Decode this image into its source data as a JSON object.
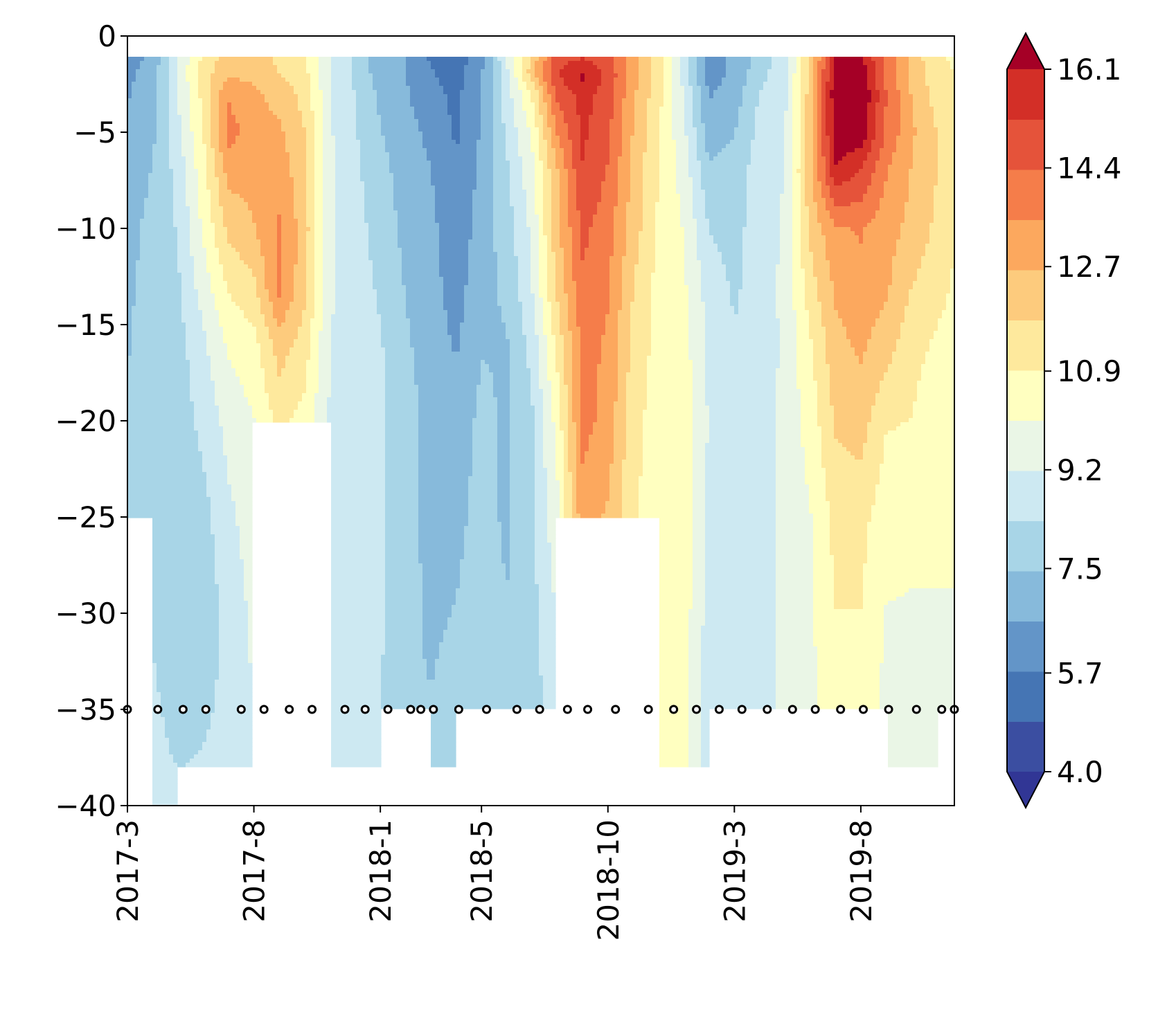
{
  "chart_data": {
    "type": "heatmap",
    "title": "",
    "xlabel": "",
    "ylabel": "",
    "x_ticks": [
      "2017-3",
      "2017-8",
      "2018-1",
      "2018-5",
      "2018-10",
      "2019-3",
      "2019-8"
    ],
    "x_tick_months": [
      0,
      5,
      10,
      14,
      19,
      24,
      29
    ],
    "x_range_months": [
      0,
      32.7
    ],
    "y_ticks": [
      0,
      -5,
      -10,
      -15,
      -20,
      -25,
      -30,
      -35,
      -40
    ],
    "y_tick_labels": [
      "0",
      "−5",
      "−10",
      "−15",
      "−20",
      "−25",
      "−30",
      "−35",
      "−40"
    ],
    "ylim": [
      -40,
      0
    ],
    "colorbar": {
      "min": 4.0,
      "max": 16.1,
      "extend": "both",
      "levels": 14,
      "tick_values": [
        16.1,
        14.4,
        12.7,
        10.9,
        9.2,
        7.5,
        5.7,
        4.0
      ],
      "tick_labels": [
        "16.1",
        "14.4",
        "12.7",
        "10.9",
        "9.2",
        "7.5",
        "5.7",
        "4.0"
      ],
      "colors_low_to_high": [
        "#3b4ea1",
        "#4575b4",
        "#6395c8",
        "#87badb",
        "#a8d5e7",
        "#cde9f2",
        "#eaf6e6",
        "#ffffc0",
        "#fee99d",
        "#fdcb7d",
        "#fca85e",
        "#f57d4a",
        "#e5533a",
        "#d32f27"
      ],
      "under_color": "#313695",
      "over_color": "#a50026"
    },
    "sample_depth": -35,
    "sample_months": [
      0,
      1.2,
      2.2,
      3.1,
      4.5,
      5.4,
      6.4,
      7.3,
      8.6,
      9.4,
      10.3,
      11.2,
      11.6,
      12.1,
      13.1,
      14.2,
      15.4,
      16.3,
      17.4,
      18.2,
      19.3,
      20.6,
      21.6,
      22.5,
      23.4,
      24.3,
      25.3,
      26.3,
      27.2,
      28.2,
      29.1,
      30.1,
      31.2,
      32.2,
      32.7
    ],
    "grid": false,
    "legend": "colorbar-right",
    "depth_levels": [
      -1,
      -2,
      -3,
      -5,
      -7,
      -10,
      -13,
      -16,
      -20,
      -25,
      -30,
      -35,
      -38,
      -40
    ],
    "profiles": [
      {
        "month": 0,
        "values": [
          6.2,
          6.4,
          6.5,
          6.8,
          7.0,
          7.2,
          7.3,
          7.4,
          7.5,
          7.6,
          null,
          null,
          null,
          null
        ]
      },
      {
        "month": 1,
        "values": [
          6.8,
          7.0,
          7.1,
          7.3,
          7.5,
          7.7,
          7.8,
          7.9,
          8.0,
          8.0,
          8.2,
          8.5,
          8.6,
          8.7
        ]
      },
      {
        "month": 2,
        "values": [
          9.4,
          9.3,
          9.2,
          9.0,
          8.6,
          8.4,
          8.2,
          8.0,
          7.8,
          7.6,
          7.6,
          8.0,
          8.3,
          8.4
        ]
      },
      {
        "month": 3,
        "values": [
          11.0,
          11.4,
          11.2,
          10.9,
          10.6,
          10.2,
          9.6,
          9.0,
          8.6,
          8.0,
          7.8,
          8.2,
          8.4,
          null
        ]
      },
      {
        "month": 4,
        "values": [
          12.2,
          12.5,
          13.4,
          13.9,
          13.0,
          12.0,
          11.0,
          10.2,
          9.5,
          9.0,
          8.6,
          8.5,
          8.6,
          null
        ]
      },
      {
        "month": 5,
        "values": [
          12.0,
          12.4,
          12.8,
          13.0,
          12.9,
          12.6,
          11.6,
          10.6,
          10.0,
          9.6,
          9.4,
          9.2,
          9.2,
          null
        ]
      },
      {
        "month": 6,
        "values": [
          11.6,
          11.8,
          12.3,
          12.8,
          13.2,
          13.6,
          13.8,
          12.2,
          11.2,
          null,
          null,
          null,
          null,
          null
        ]
      },
      {
        "month": 7,
        "values": [
          11.0,
          11.2,
          11.5,
          11.8,
          12.0,
          12.2,
          12.0,
          11.4,
          10.6,
          null,
          null,
          null,
          null,
          null
        ]
      },
      {
        "month": 8,
        "values": [
          9.2,
          9.2,
          9.3,
          9.3,
          9.4,
          9.4,
          9.3,
          9.2,
          9.1,
          9.0,
          8.8,
          8.7,
          8.7,
          null
        ]
      },
      {
        "month": 9,
        "values": [
          8.2,
          8.2,
          8.3,
          8.4,
          8.5,
          8.6,
          8.7,
          8.8,
          8.8,
          8.9,
          8.9,
          8.8,
          8.7,
          null
        ]
      },
      {
        "month": 10,
        "values": [
          6.9,
          7.0,
          7.3,
          7.5,
          7.8,
          8.0,
          8.2,
          8.4,
          8.5,
          8.5,
          8.4,
          8.4,
          8.3,
          null
        ]
      },
      {
        "month": 11,
        "values": [
          6.6,
          6.6,
          6.7,
          6.9,
          7.0,
          7.2,
          7.4,
          7.6,
          7.8,
          7.8,
          7.7,
          7.6,
          null,
          null
        ]
      },
      {
        "month": 12,
        "values": [
          5.6,
          5.8,
          6.0,
          6.4,
          6.6,
          6.8,
          6.9,
          7.0,
          7.2,
          7.2,
          7.3,
          7.5,
          7.6,
          7.6
        ]
      },
      {
        "month": 13,
        "values": [
          5.2,
          5.4,
          5.5,
          5.6,
          5.8,
          6.0,
          6.2,
          6.5,
          6.9,
          7.2,
          7.5,
          7.8,
          8.0,
          null
        ]
      },
      {
        "month": 14,
        "values": [
          6.3,
          6.5,
          6.6,
          6.7,
          6.8,
          7.0,
          7.2,
          7.4,
          7.7,
          7.8,
          8.0,
          8.2,
          null,
          null
        ]
      },
      {
        "month": 15,
        "values": [
          9.2,
          9.0,
          8.8,
          8.5,
          8.2,
          7.9,
          7.6,
          7.4,
          7.3,
          7.3,
          7.5,
          7.8,
          null,
          null
        ]
      },
      {
        "month": 16,
        "values": [
          12.0,
          12.3,
          11.0,
          10.2,
          9.8,
          9.4,
          9.2,
          8.6,
          8.2,
          8.2,
          8.0,
          7.9,
          null,
          null
        ]
      },
      {
        "month": 17,
        "values": [
          14.8,
          15.2,
          14.6,
          13.6,
          12.6,
          12.4,
          12.0,
          11.2,
          10.4,
          9.8,
          9.3,
          8.9,
          8.7,
          null
        ]
      },
      {
        "month": 18,
        "values": [
          15.0,
          16.3,
          15.6,
          15.4,
          15.2,
          14.6,
          14.2,
          13.8,
          13.8,
          13.2,
          null,
          null,
          null,
          null
        ]
      },
      {
        "month": 19,
        "values": [
          14.6,
          15.0,
          14.8,
          14.6,
          14.3,
          13.9,
          13.6,
          13.4,
          13.2,
          12.5,
          null,
          null,
          null,
          null
        ]
      },
      {
        "month": 20,
        "values": [
          13.0,
          13.0,
          12.8,
          12.6,
          12.4,
          12.2,
          11.8,
          11.5,
          11.2,
          11.0,
          null,
          null,
          null,
          null
        ]
      },
      {
        "month": 21,
        "values": [
          11.4,
          11.4,
          11.2,
          11.0,
          10.9,
          10.8,
          10.6,
          10.6,
          10.5,
          10.5,
          10.4,
          10.3,
          10.3,
          null
        ]
      },
      {
        "month": 22,
        "values": [
          8.8,
          8.8,
          9.2,
          9.4,
          9.7,
          10.0,
          10.2,
          10.4,
          10.5,
          10.5,
          10.5,
          10.4,
          10.3,
          null
        ]
      },
      {
        "month": 23,
        "values": [
          6.2,
          6.2,
          6.5,
          7.0,
          7.6,
          8.3,
          8.8,
          9.0,
          9.1,
          9.0,
          8.8,
          8.6,
          8.5,
          null
        ]
      },
      {
        "month": 24,
        "values": [
          6.8,
          6.8,
          7.0,
          7.4,
          7.8,
          8.0,
          8.2,
          8.4,
          8.5,
          8.5,
          8.4,
          8.4,
          null,
          null
        ]
      },
      {
        "month": 25,
        "values": [
          7.8,
          8.0,
          8.4,
          8.6,
          8.8,
          8.8,
          8.7,
          8.6,
          8.5,
          8.4,
          8.4,
          8.5,
          null,
          null
        ]
      },
      {
        "month": 26,
        "values": [
          8.8,
          8.9,
          9.0,
          9.1,
          9.2,
          9.3,
          9.4,
          9.4,
          9.5,
          9.5,
          9.5,
          9.5,
          9.5,
          null
        ]
      },
      {
        "month": 27,
        "values": [
          11.8,
          12.0,
          12.2,
          12.3,
          12.4,
          12.0,
          11.4,
          10.8,
          10.4,
          10.0,
          9.9,
          9.8,
          null,
          null
        ]
      },
      {
        "month": 28,
        "values": [
          16.4,
          16.6,
          16.8,
          16.6,
          16.0,
          13.4,
          12.8,
          12.4,
          11.9,
          11.2,
          10.9,
          10.6,
          null,
          null
        ]
      },
      {
        "month": 29,
        "values": [
          16.3,
          16.8,
          17.0,
          16.8,
          15.2,
          13.6,
          13.2,
          12.8,
          12.2,
          11.2,
          10.9,
          10.6,
          null,
          null
        ]
      },
      {
        "month": 30,
        "values": [
          14.0,
          14.2,
          14.4,
          14.2,
          13.6,
          13.0,
          12.8,
          12.2,
          11.0,
          10.4,
          10.0,
          9.8,
          9.6,
          null
        ]
      },
      {
        "month": 31,
        "values": [
          12.4,
          12.4,
          12.6,
          12.8,
          12.6,
          12.4,
          11.8,
          11.2,
          10.9,
          10.2,
          10.0,
          9.9,
          9.8,
          null
        ]
      },
      {
        "month": 32,
        "values": [
          11.0,
          11.2,
          11.4,
          11.8,
          11.8,
          11.6,
          11.2,
          10.8,
          10.4,
          10.2,
          10.0,
          9.9,
          9.9,
          null
        ]
      },
      {
        "month": 32.7,
        "values": [
          10.8,
          10.9,
          11.0,
          11.2,
          11.2,
          11.0,
          10.8,
          10.6,
          10.4,
          10.2,
          10.0,
          9.9,
          null,
          null
        ]
      }
    ]
  }
}
